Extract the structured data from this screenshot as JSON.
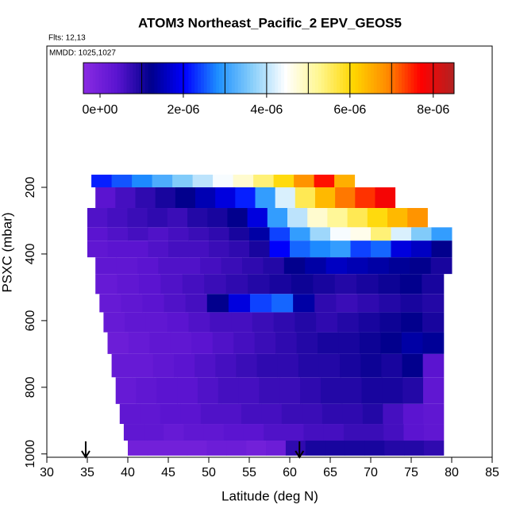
{
  "chart_data": {
    "type": "curtain",
    "title": "ATOM3 Northeast_Pacific_2 EPV_GEOS5",
    "flights_note": "Flts: 12,13",
    "date_note": "MMDD: 1025,1027",
    "x_label": "Latitude (deg N)",
    "y_label": "PSXC (mbar)",
    "xlim": [
      30,
      85
    ],
    "xticks": [
      30,
      35,
      40,
      45,
      50,
      55,
      60,
      65,
      70,
      75,
      80,
      85
    ],
    "ylim": [
      1010,
      -224
    ],
    "yticks": [
      200,
      400,
      600,
      800,
      1000
    ],
    "clim": [
      -4e-07,
      8.5e-06
    ],
    "colorbar_ticks": [
      {
        "value": 0,
        "label": "0e+00"
      },
      {
        "value": 2e-06,
        "label": "2e-06"
      },
      {
        "value": 4e-06,
        "label": "4e-06"
      },
      {
        "value": 6e-06,
        "label": "6e-06"
      },
      {
        "value": 8e-06,
        "label": "8e-06"
      }
    ],
    "colorbar_divisions": [
      1e-06,
      2e-06,
      3e-06,
      4e-06,
      5e-06,
      6e-06,
      7e-06,
      8e-06
    ],
    "palette": [
      "#8a2be2",
      "#5a14d0",
      "#00008b",
      "#0000ff",
      "#1e90ff",
      "#87cefa",
      "#ffffff",
      "#fff68f",
      "#ffd700",
      "#ff8c00",
      "#ff0000",
      "#b22222"
    ],
    "marker_lats": [
      34.8,
      61.2
    ],
    "rows": [
      {
        "p": [
          162,
          200
        ],
        "lat": [
          35.5,
          68
        ],
        "values": [
          2.2e-06,
          2.5e-06,
          2.8e-06,
          3.2e-06,
          3.6e-06,
          4e-06,
          4.4e-06,
          4.8e-06,
          5.4e-06,
          6e-06,
          6.8e-06,
          7.6e-06,
          6.5e-06
        ]
      },
      {
        "p": [
          200,
          262
        ],
        "lat": [
          36,
          73
        ],
        "values": [
          4e-07,
          6e-07,
          8e-07,
          1e-06,
          1.2e-06,
          1.5e-06,
          1.8e-06,
          2.2e-06,
          3e-06,
          4.2e-06,
          5.6e-06,
          6.4e-06,
          7e-06,
          7.4e-06,
          7.8e-06
        ]
      },
      {
        "p": [
          262,
          320
        ],
        "lat": [
          35,
          77
        ],
        "values": [
          5e-07,
          6e-07,
          7e-07,
          8e-07,
          7e-07,
          9e-07,
          1e-06,
          1.2e-06,
          1.8e-06,
          3e-06,
          4e-06,
          4.8e-06,
          5.2e-06,
          5.6e-06,
          6e-06,
          6.4e-06,
          6.8e-06
        ]
      },
      {
        "p": [
          320,
          360
        ],
        "lat": [
          35,
          80
        ],
        "values": [
          4e-07,
          5e-07,
          6e-07,
          5e-07,
          6e-07,
          7e-07,
          8e-07,
          1e-06,
          1.4e-06,
          2.4e-06,
          3e-06,
          3.8e-06,
          4.4e-06,
          4.6e-06,
          5.4e-06,
          4.2e-06,
          3.6e-06,
          3e-06
        ]
      },
      {
        "p": [
          360,
          410
        ],
        "lat": [
          35,
          80
        ],
        "values": [
          3e-07,
          4e-07,
          4e-07,
          5e-07,
          6e-07,
          6e-07,
          7e-07,
          8e-07,
          1e-06,
          2e-06,
          2.6e-06,
          2.8e-06,
          3e-06,
          2.4e-06,
          2.6e-06,
          1.8e-06,
          1.6e-06,
          1.2e-06
        ]
      },
      {
        "p": [
          410,
          460
        ],
        "lat": [
          36,
          80
        ],
        "values": [
          3e-07,
          3e-07,
          4e-07,
          5e-07,
          5e-07,
          6e-07,
          7e-07,
          8e-07,
          9e-07,
          1.2e-06,
          1.4e-06,
          1.6e-06,
          1.5e-06,
          1.4e-06,
          1.3e-06,
          1.2e-06,
          1e-06
        ]
      },
      {
        "p": [
          460,
          520
        ],
        "lat": [
          36,
          79
        ],
        "values": [
          2e-07,
          3e-07,
          4e-07,
          5e-07,
          6e-07,
          7e-07,
          8e-07,
          9e-07,
          1e-06,
          1.1e-06,
          1e-06,
          9e-07,
          1e-06,
          1.1e-06,
          1.2e-06,
          1e-06
        ]
      },
      {
        "p": [
          520,
          575
        ],
        "lat": [
          36.5,
          79
        ],
        "values": [
          2e-07,
          3e-07,
          4e-07,
          5e-07,
          6e-07,
          1.2e-06,
          1.8e-06,
          2.4e-06,
          2.6e-06,
          1.4e-06,
          8e-07,
          7e-07,
          8e-07,
          9e-07,
          1e-06,
          9e-07
        ]
      },
      {
        "p": [
          575,
          635
        ],
        "lat": [
          37,
          79
        ],
        "values": [
          2e-07,
          3e-07,
          3e-07,
          4e-07,
          5e-07,
          6e-07,
          6e-07,
          7e-07,
          8e-07,
          9e-07,
          8e-07,
          9e-07,
          1e-06,
          1.1e-06,
          1.2e-06,
          1e-06
        ]
      },
      {
        "p": [
          635,
          700
        ],
        "lat": [
          37.5,
          79
        ],
        "values": [
          1e-07,
          2e-07,
          3e-07,
          3e-07,
          4e-07,
          5e-07,
          6e-07,
          7e-07,
          8e-07,
          9e-07,
          1e-06,
          1e-06,
          1.1e-06,
          1.2e-06,
          1.4e-06,
          1.3e-06
        ]
      },
      {
        "p": [
          700,
          770
        ],
        "lat": [
          38,
          79
        ],
        "values": [
          2e-07,
          2e-07,
          3e-07,
          4e-07,
          5e-07,
          6e-07,
          7e-07,
          8e-07,
          8e-07,
          9e-07,
          9e-07,
          1e-06,
          1.1e-06,
          1e-06,
          1.2e-06,
          4e-07
        ]
      },
      {
        "p": [
          770,
          850
        ],
        "lat": [
          38.5,
          79
        ],
        "values": [
          2e-07,
          3e-07,
          4e-07,
          4e-07,
          5e-07,
          6e-07,
          6e-07,
          7e-07,
          7e-07,
          8e-07,
          9e-07,
          9e-07,
          1e-06,
          1e-06,
          9e-07,
          3e-07
        ]
      },
      {
        "p": [
          850,
          910
        ],
        "lat": [
          39,
          79
        ],
        "values": [
          3e-07,
          3e-07,
          4e-07,
          4e-07,
          5e-07,
          5e-07,
          6e-07,
          6e-07,
          7e-07,
          7e-07,
          8e-07,
          8e-07,
          9e-07,
          6e-07,
          4e-07,
          3e-07
        ]
      },
      {
        "p": [
          910,
          960
        ],
        "lat": [
          39.5,
          79
        ],
        "values": [
          3e-07,
          3e-07,
          2e-07,
          3e-07,
          3e-07,
          4e-07,
          4e-07,
          5e-07,
          5e-07,
          6e-07,
          6e-07,
          7e-07,
          7e-07,
          6e-07,
          4e-07,
          3e-07
        ]
      },
      {
        "p": [
          960,
          1005
        ],
        "lat": [
          40,
          79
        ],
        "values": [
          0.0,
          0.0,
          0.0,
          0.0,
          1e-07,
          1e-07,
          0.0,
          1e-07,
          8e-07,
          1e-06,
          1e-06,
          1e-06,
          1e-06,
          9e-07,
          9e-07,
          8e-07
        ]
      }
    ]
  }
}
